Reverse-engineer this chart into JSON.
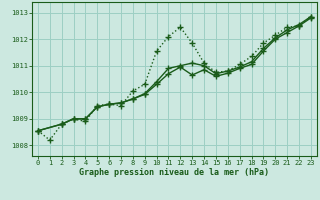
{
  "title": "Graphe pression niveau de la mer (hPa)",
  "background_color": "#cce8e0",
  "grid_color": "#9dcfc4",
  "line_color": "#1a5c1a",
  "xlim": [
    -0.5,
    23.5
  ],
  "ylim": [
    1007.6,
    1013.4
  ],
  "yticks": [
    1008,
    1009,
    1010,
    1011,
    1012,
    1013
  ],
  "xticks": [
    0,
    1,
    2,
    3,
    4,
    5,
    6,
    7,
    8,
    9,
    10,
    11,
    12,
    13,
    14,
    15,
    16,
    17,
    18,
    19,
    20,
    21,
    22,
    23
  ],
  "series": [
    {
      "x": [
        0,
        1,
        2,
        3,
        4,
        5,
        6,
        7,
        8,
        9,
        10,
        11,
        12,
        13,
        14,
        15,
        16,
        17,
        18,
        19,
        20,
        21,
        22,
        23
      ],
      "y": [
        1008.55,
        1008.2,
        1008.8,
        1009.0,
        1008.9,
        1009.5,
        1009.55,
        1009.5,
        1010.05,
        1010.3,
        1011.55,
        1012.1,
        1012.45,
        1011.85,
        1011.1,
        1010.75,
        1010.8,
        1011.05,
        1011.35,
        1011.85,
        1012.15,
        1012.45,
        1012.5,
        1012.85
      ],
      "linestyle": "dotted",
      "linewidth": 1.0,
      "marker": "+",
      "markersize": 4.5
    },
    {
      "x": [
        0,
        2,
        3,
        4,
        5,
        6,
        7,
        8,
        9,
        10,
        11,
        12,
        13,
        14,
        15,
        16,
        17,
        18,
        19,
        20,
        21,
        22,
        23
      ],
      "y": [
        1008.55,
        1008.8,
        1009.0,
        1009.0,
        1009.45,
        1009.55,
        1009.6,
        1009.75,
        1009.95,
        1010.4,
        1010.9,
        1011.0,
        1011.1,
        1011.0,
        1010.7,
        1010.8,
        1010.95,
        1011.15,
        1011.65,
        1012.05,
        1012.35,
        1012.55,
        1012.85
      ],
      "linestyle": "solid",
      "linewidth": 1.0,
      "marker": "+",
      "markersize": 4.5
    },
    {
      "x": [
        0,
        2,
        3,
        4,
        5,
        6,
        7,
        8,
        9,
        10,
        11,
        12,
        13,
        14,
        15,
        16,
        17,
        18,
        19,
        20,
        21,
        22,
        23
      ],
      "y": [
        1008.55,
        1008.8,
        1009.0,
        1009.0,
        1009.45,
        1009.55,
        1009.6,
        1009.75,
        1009.92,
        1010.3,
        1010.7,
        1010.95,
        1010.65,
        1010.85,
        1010.6,
        1010.72,
        1010.9,
        1011.05,
        1011.55,
        1012.0,
        1012.25,
        1012.5,
        1012.8
      ],
      "linestyle": "solid",
      "linewidth": 1.0,
      "marker": "+",
      "markersize": 4.5
    }
  ]
}
